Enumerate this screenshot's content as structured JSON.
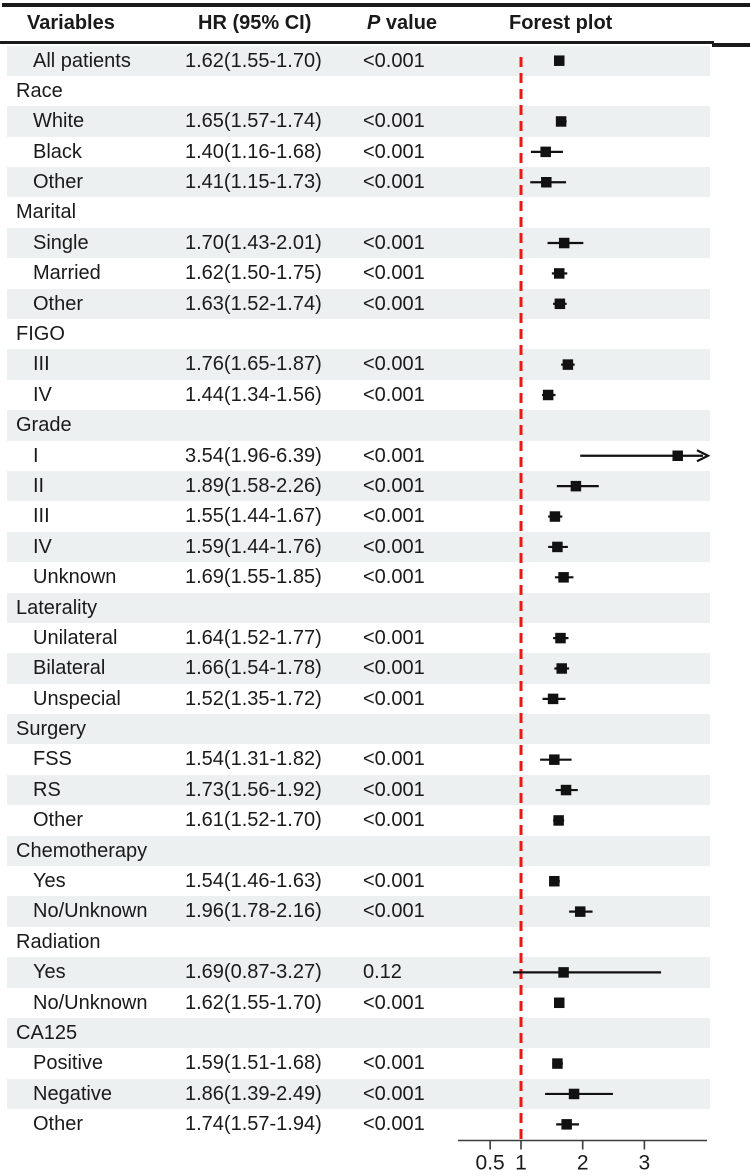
{
  "header": {
    "variables": "Variables",
    "hr": "HR (95% CI)",
    "p_italic": "P",
    "p_rest": " value",
    "plot": "Forest plot"
  },
  "colors": {
    "stripe": "#edf0f0",
    "text": "#1a1a1a",
    "reference_line": "#f31511",
    "marker": "#111111",
    "axis": "#3c3c3c"
  },
  "chart_data": {
    "type": "forest",
    "x_scale": "linear",
    "xlim": [
      0,
      4
    ],
    "reference_value": 1,
    "axis_ticks": [
      {
        "value": 0.5,
        "label": "0.5"
      },
      {
        "value": 1,
        "label": "1"
      },
      {
        "value": 2,
        "label": "2"
      },
      {
        "value": 3,
        "label": "3"
      }
    ],
    "rows": [
      {
        "label": "All patients",
        "type": "item",
        "hr_text": "1.62(1.55-1.70)",
        "p_text": "<0.001",
        "hr": 1.62,
        "lo": 1.55,
        "hi": 1.7
      },
      {
        "label": "Race",
        "type": "group"
      },
      {
        "label": "White",
        "type": "item",
        "hr_text": "1.65(1.57-1.74)",
        "p_text": "<0.001",
        "hr": 1.65,
        "lo": 1.57,
        "hi": 1.74
      },
      {
        "label": "Black",
        "type": "item",
        "hr_text": "1.40(1.16-1.68)",
        "p_text": "<0.001",
        "hr": 1.4,
        "lo": 1.16,
        "hi": 1.68
      },
      {
        "label": "Other",
        "type": "item",
        "hr_text": "1.41(1.15-1.73)",
        "p_text": "<0.001",
        "hr": 1.41,
        "lo": 1.15,
        "hi": 1.73
      },
      {
        "label": "Marital",
        "type": "group"
      },
      {
        "label": "Single",
        "type": "item",
        "hr_text": "1.70(1.43-2.01)",
        "p_text": "<0.001",
        "hr": 1.7,
        "lo": 1.43,
        "hi": 2.01
      },
      {
        "label": "Married",
        "type": "item",
        "hr_text": "1.62(1.50-1.75)",
        "p_text": "<0.001",
        "hr": 1.62,
        "lo": 1.5,
        "hi": 1.75
      },
      {
        "label": "Other",
        "type": "item",
        "hr_text": "1.63(1.52-1.74)",
        "p_text": "<0.001",
        "hr": 1.63,
        "lo": 1.52,
        "hi": 1.74
      },
      {
        "label": "FIGO",
        "type": "group"
      },
      {
        "label": "III",
        "type": "item",
        "hr_text": "1.76(1.65-1.87)",
        "p_text": "<0.001",
        "hr": 1.76,
        "lo": 1.65,
        "hi": 1.87
      },
      {
        "label": "IV",
        "type": "item",
        "hr_text": "1.44(1.34-1.56)",
        "p_text": "<0.001",
        "hr": 1.44,
        "lo": 1.34,
        "hi": 1.56
      },
      {
        "label": "Grade",
        "type": "group"
      },
      {
        "label": "I",
        "type": "item",
        "hr_text": "3.54(1.96-6.39)",
        "p_text": "<0.001",
        "hr": 3.54,
        "lo": 1.96,
        "hi": 6.39
      },
      {
        "label": "II",
        "type": "item",
        "hr_text": "1.89(1.58-2.26)",
        "p_text": "<0.001",
        "hr": 1.89,
        "lo": 1.58,
        "hi": 2.26
      },
      {
        "label": "III",
        "type": "item",
        "hr_text": "1.55(1.44-1.67)",
        "p_text": "<0.001",
        "hr": 1.55,
        "lo": 1.44,
        "hi": 1.67
      },
      {
        "label": "IV",
        "type": "item",
        "hr_text": "1.59(1.44-1.76)",
        "p_text": "<0.001",
        "hr": 1.59,
        "lo": 1.44,
        "hi": 1.76
      },
      {
        "label": "Unknown",
        "type": "item",
        "hr_text": "1.69(1.55-1.85)",
        "p_text": "<0.001",
        "hr": 1.69,
        "lo": 1.55,
        "hi": 1.85
      },
      {
        "label": "Laterality",
        "type": "group"
      },
      {
        "label": "Unilateral",
        "type": "item",
        "hr_text": "1.64(1.52-1.77)",
        "p_text": "<0.001",
        "hr": 1.64,
        "lo": 1.52,
        "hi": 1.77
      },
      {
        "label": "Bilateral",
        "type": "item",
        "hr_text": "1.66(1.54-1.78)",
        "p_text": "<0.001",
        "hr": 1.66,
        "lo": 1.54,
        "hi": 1.78
      },
      {
        "label": "Unspecial",
        "type": "item",
        "hr_text": "1.52(1.35-1.72)",
        "p_text": "<0.001",
        "hr": 1.52,
        "lo": 1.35,
        "hi": 1.72
      },
      {
        "label": "Surgery",
        "type": "group"
      },
      {
        "label": "FSS",
        "type": "item",
        "hr_text": "1.54(1.31-1.82)",
        "p_text": "<0.001",
        "hr": 1.54,
        "lo": 1.31,
        "hi": 1.82
      },
      {
        "label": "RS",
        "type": "item",
        "hr_text": "1.73(1.56-1.92)",
        "p_text": "<0.001",
        "hr": 1.73,
        "lo": 1.56,
        "hi": 1.92
      },
      {
        "label": "Other",
        "type": "item",
        "hr_text": "1.61(1.52-1.70)",
        "p_text": "<0.001",
        "hr": 1.61,
        "lo": 1.52,
        "hi": 1.7
      },
      {
        "label": "Chemotherapy",
        "type": "group"
      },
      {
        "label": "Yes",
        "type": "item",
        "hr_text": "1.54(1.46-1.63)",
        "p_text": "<0.001",
        "hr": 1.54,
        "lo": 1.46,
        "hi": 1.63
      },
      {
        "label": "No/Unknown",
        "type": "item",
        "hr_text": "1.96(1.78-2.16)",
        "p_text": "<0.001",
        "hr": 1.96,
        "lo": 1.78,
        "hi": 2.16
      },
      {
        "label": "Radiation",
        "type": "group"
      },
      {
        "label": "Yes",
        "type": "item",
        "hr_text": "1.69(0.87-3.27)",
        "p_text": "0.12",
        "hr": 1.69,
        "lo": 0.87,
        "hi": 3.27
      },
      {
        "label": "No/Unknown",
        "type": "item",
        "hr_text": "1.62(1.55-1.70)",
        "p_text": "<0.001",
        "hr": 1.62,
        "lo": 1.55,
        "hi": 1.7
      },
      {
        "label": "CA125",
        "type": "group"
      },
      {
        "label": "Positive",
        "type": "item",
        "hr_text": "1.59(1.51-1.68)",
        "p_text": "<0.001",
        "hr": 1.59,
        "lo": 1.51,
        "hi": 1.68
      },
      {
        "label": "Negative",
        "type": "item",
        "hr_text": "1.86(1.39-2.49)",
        "p_text": "<0.001",
        "hr": 1.86,
        "lo": 1.39,
        "hi": 2.49
      },
      {
        "label": "Other",
        "type": "item",
        "hr_text": "1.74(1.57-1.94)",
        "p_text": "<0.001",
        "hr": 1.74,
        "lo": 1.57,
        "hi": 1.94
      }
    ]
  }
}
